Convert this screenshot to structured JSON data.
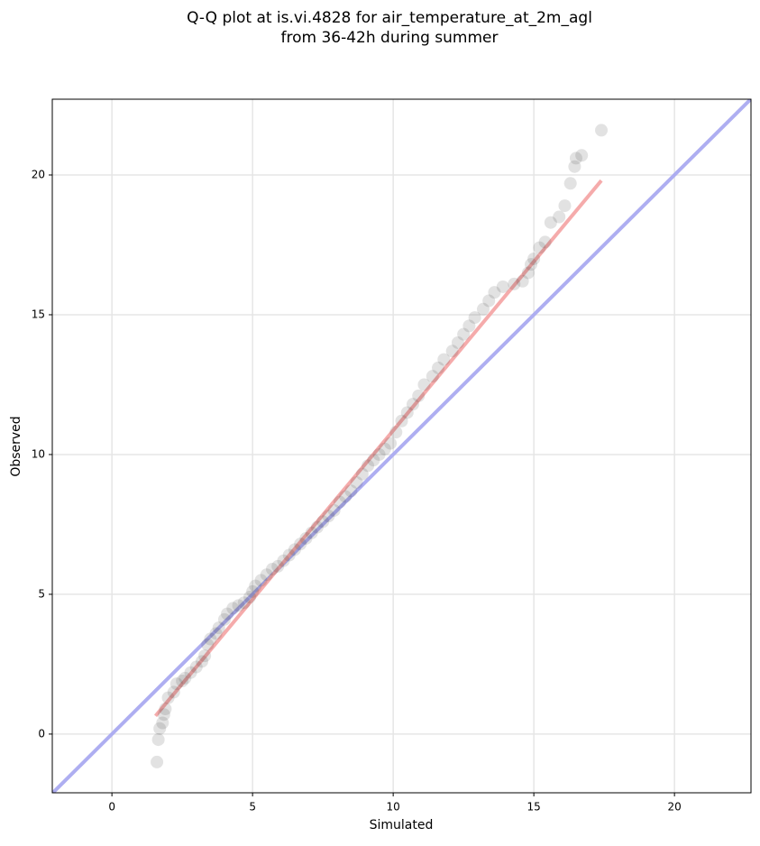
{
  "chart_data": {
    "type": "scatter",
    "title": [
      "Q-Q plot at is.vi.4828 for air_temperature_at_2m_agl",
      "from 36-42h during summer"
    ],
    "xlabel": "Simulated",
    "ylabel": "Observed",
    "xlim": [
      -2.12,
      22.72
    ],
    "ylim": [
      -2.1,
      22.71
    ],
    "xticks": [
      0,
      5,
      10,
      15,
      20
    ],
    "yticks": [
      0,
      5,
      10,
      15,
      20
    ],
    "grid": true,
    "color": "#333333",
    "series": [
      {
        "color": "#333333",
        "x": [
          1.6,
          1.65,
          1.7,
          1.8,
          1.85,
          1.9,
          2.0,
          2.2,
          2.3,
          2.5,
          2.6,
          2.8,
          3.0,
          3.2,
          3.3,
          3.4,
          3.5,
          3.7,
          3.8,
          4.0,
          4.1,
          4.3,
          4.5,
          4.7,
          4.9,
          5.0,
          5.1,
          5.3,
          5.5,
          5.7,
          5.9,
          6.1,
          6.3,
          6.5,
          6.7,
          6.9,
          7.1,
          7.3,
          7.5,
          7.7,
          7.9,
          8.1,
          8.3,
          8.5,
          8.7,
          8.9,
          9.1,
          9.3,
          9.5,
          9.7,
          9.9,
          10.1,
          10.3,
          10.5,
          10.7,
          10.9,
          11.1,
          11.4,
          11.6,
          11.8,
          12.1,
          12.3,
          12.5,
          12.7,
          12.9,
          13.2,
          13.4,
          13.6,
          13.9,
          14.3,
          14.6,
          14.8,
          14.9,
          15.0,
          15.2,
          15.4,
          15.6,
          15.9,
          16.1,
          16.3,
          16.45,
          16.5,
          16.7,
          17.4
        ],
        "values": [
          -1.0,
          -0.2,
          0.2,
          0.4,
          0.7,
          0.9,
          1.3,
          1.5,
          1.8,
          1.9,
          2.0,
          2.2,
          2.4,
          2.6,
          2.8,
          3.2,
          3.4,
          3.6,
          3.8,
          4.1,
          4.3,
          4.5,
          4.6,
          4.7,
          4.9,
          5.1,
          5.3,
          5.5,
          5.7,
          5.9,
          6.0,
          6.2,
          6.4,
          6.6,
          6.8,
          7.0,
          7.2,
          7.4,
          7.6,
          7.8,
          8.0,
          8.3,
          8.5,
          8.7,
          9.0,
          9.3,
          9.6,
          9.8,
          10.0,
          10.2,
          10.4,
          10.8,
          11.2,
          11.5,
          11.8,
          12.1,
          12.5,
          12.8,
          13.1,
          13.4,
          13.7,
          14.0,
          14.3,
          14.6,
          14.9,
          15.2,
          15.5,
          15.8,
          16.0,
          16.1,
          16.2,
          16.5,
          16.8,
          17.0,
          17.4,
          17.6,
          18.3,
          18.5,
          18.9,
          19.7,
          20.3,
          20.6,
          20.7,
          21.6
        ]
      }
    ],
    "lines": [
      {
        "color": "#aaaaf0",
        "x": [
          -2.12,
          22.72
        ],
        "y": [
          -2.12,
          22.72
        ]
      },
      {
        "color": "#f4a6a6",
        "x": [
          1.55,
          17.4
        ],
        "y": [
          0.65,
          19.8
        ]
      }
    ]
  }
}
